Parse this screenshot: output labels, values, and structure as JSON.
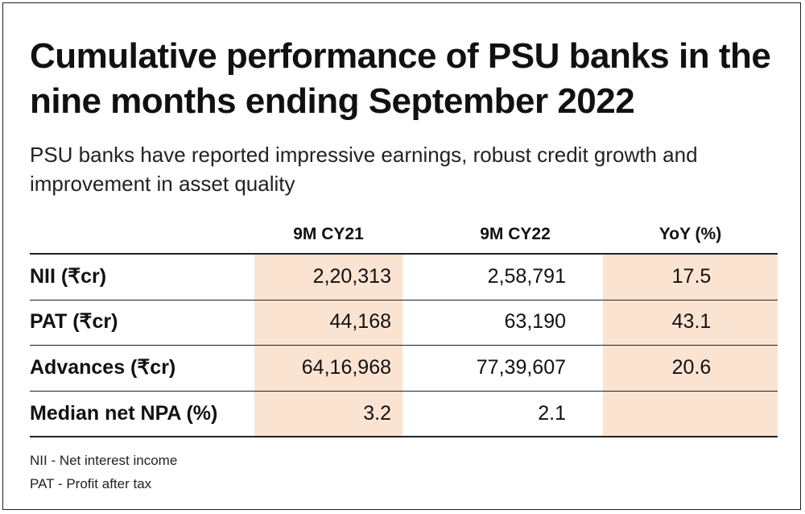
{
  "title": "Cumulative performance of PSU banks in the nine months ending September 2022",
  "subtitle": "PSU banks have reported impressive earnings, robust credit growth and improvement in asset quality",
  "table": {
    "columns": [
      "",
      "9M CY21",
      "9M CY22",
      "YoY (%)"
    ],
    "rows": [
      {
        "label": "NII (₹cr)",
        "cy21": "2,20,313",
        "cy22": "2,58,791",
        "yoy": "17.5"
      },
      {
        "label": "PAT (₹cr)",
        "cy21": "44,168",
        "cy22": "63,190",
        "yoy": "43.1"
      },
      {
        "label": "Advances (₹cr)",
        "cy21": "64,16,968",
        "cy22": "77,39,607",
        "yoy": "20.6"
      },
      {
        "label": "Median net NPA (%)",
        "cy21": "3.2",
        "cy22": "2.1",
        "yoy": ""
      }
    ]
  },
  "notes": [
    "NII - Net interest income",
    "PAT - Profit after tax"
  ],
  "colors": {
    "highlight": "#fbe3d2",
    "text": "#111111",
    "rule": "#222222"
  }
}
